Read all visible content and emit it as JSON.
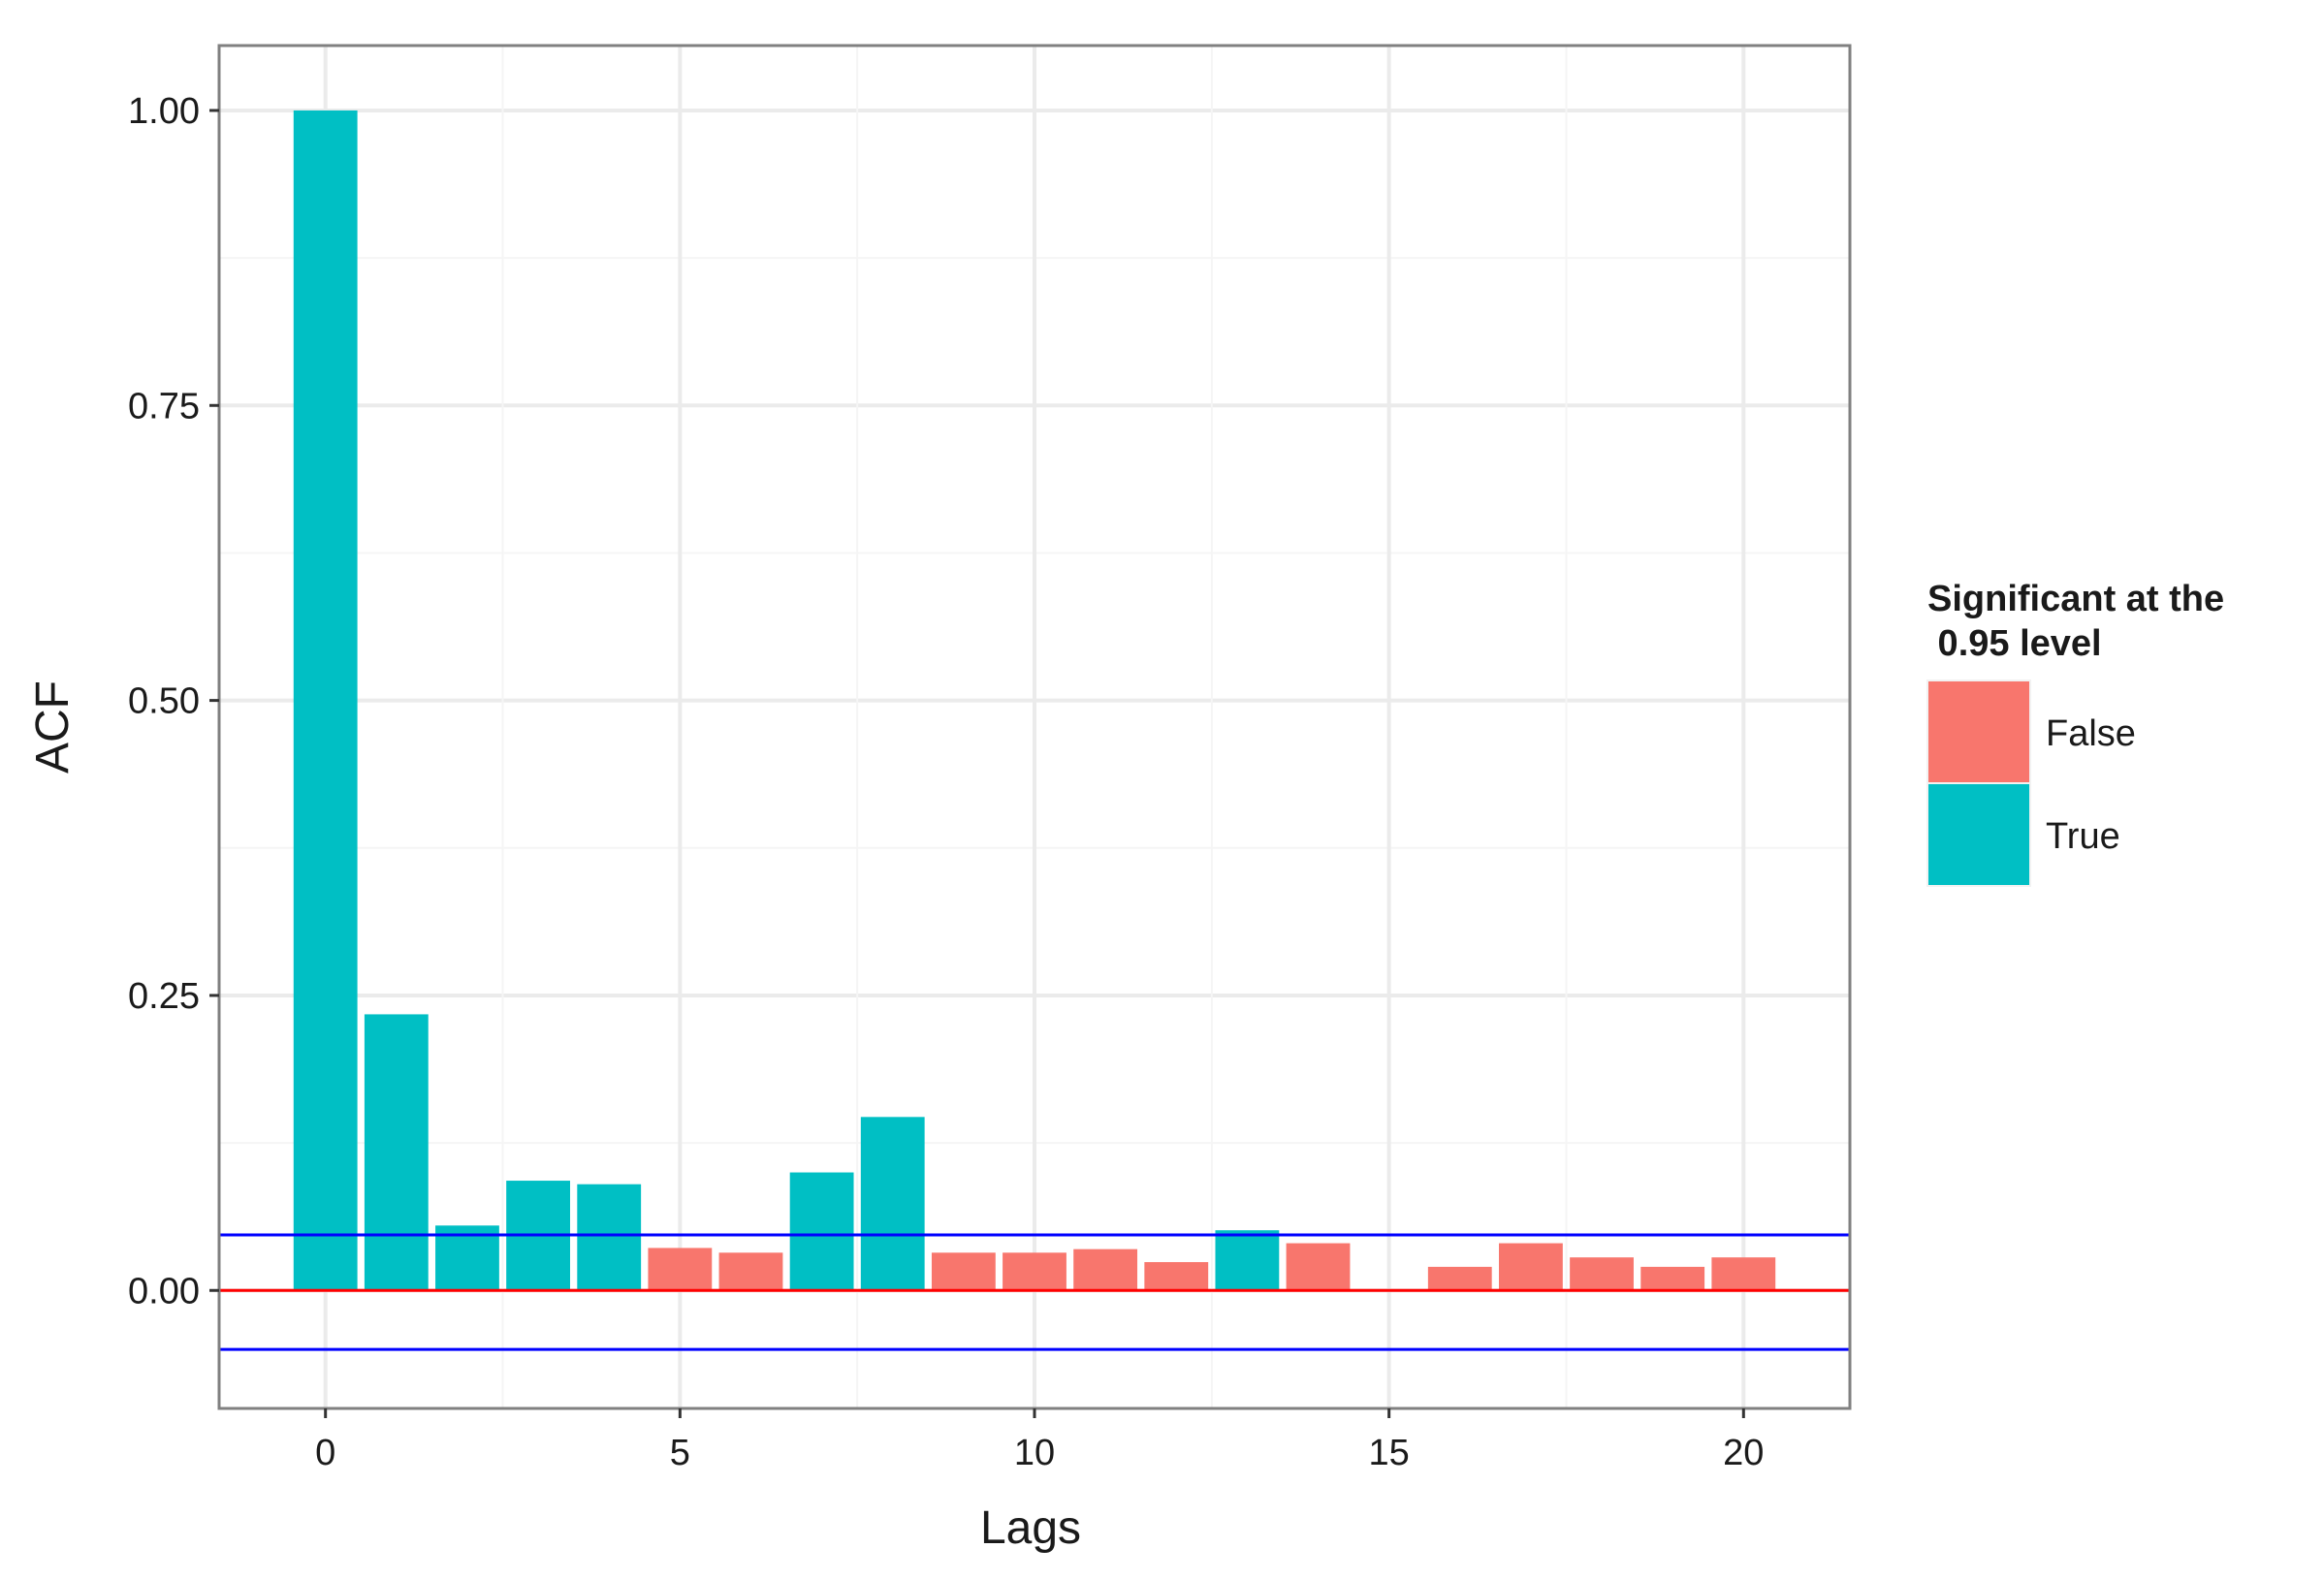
{
  "chart_data": {
    "type": "bar",
    "xlabel": "Lags",
    "ylabel": "ACF",
    "xlim": [
      -1.5,
      21.5
    ],
    "ylim": [
      -0.1,
      1.055
    ],
    "x_ticks": [
      0,
      5,
      10,
      15,
      20
    ],
    "y_ticks": [
      0.0,
      0.25,
      0.5,
      0.75,
      1.0
    ],
    "y_tick_labels": [
      "0.00",
      "0.25",
      "0.50",
      "0.75",
      "1.00"
    ],
    "grid": true,
    "series": [
      {
        "name": "False",
        "color": "#F8766D",
        "x": [
          5,
          6,
          9,
          10,
          11,
          12,
          14,
          16,
          17,
          18,
          19,
          20
        ],
        "values": [
          0.036,
          0.032,
          0.032,
          0.032,
          0.035,
          0.024,
          0.04,
          0.02,
          0.04,
          0.028,
          0.02,
          0.028
        ]
      },
      {
        "name": "True",
        "color": "#00BFC4",
        "x": [
          0,
          1,
          2,
          3,
          4,
          7,
          8,
          13
        ],
        "values": [
          1.0,
          0.234,
          0.055,
          0.093,
          0.09,
          0.1,
          0.147,
          0.051
        ]
      }
    ],
    "reference_lines": [
      {
        "y": 0.047,
        "color": "#0000FF"
      },
      {
        "y": 0.0,
        "color": "#FF0000"
      },
      {
        "y": -0.05,
        "color": "#0000FF"
      }
    ],
    "legend": {
      "title_line1": "Significant at the",
      "title_line2": " 0.95 level",
      "position": "right"
    }
  }
}
